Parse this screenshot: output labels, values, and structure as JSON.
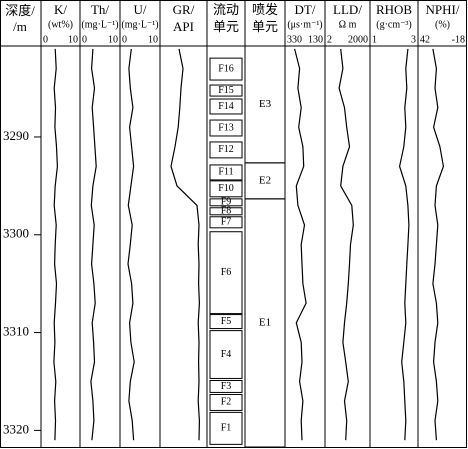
{
  "chart_data": {
    "type": "well-log",
    "depth_name": "深度/",
    "depth_unit": "/m",
    "ylim": [
      3280.7,
      3321.7
    ],
    "yticks": [
      3290,
      3300,
      3310,
      3320
    ],
    "depth": [
      3281,
      3283,
      3285,
      3287,
      3289,
      3291,
      3293,
      3295,
      3297,
      3299,
      3301,
      3303,
      3305,
      3307,
      3309,
      3311,
      3313,
      3315,
      3317,
      3319,
      3321
    ],
    "tracks": [
      {
        "type": "curve",
        "name": "K/",
        "unit": "(wt%)",
        "xlim": [
          0,
          10
        ],
        "xticks": [
          0,
          10
        ],
        "values": [
          3.5,
          3.8,
          3.2,
          3.6,
          3.4,
          3.9,
          4.2,
          3.5,
          3.2,
          3.8,
          3.5,
          3.3,
          3.9,
          3.6,
          3.2,
          3.4,
          3.1,
          3.7,
          3.3,
          3.6,
          3.4
        ]
      },
      {
        "type": "curve",
        "name": "Th/",
        "unit": "(mg·L⁻¹)",
        "xlim": [
          0,
          10
        ],
        "xticks": [
          0,
          10
        ],
        "values": [
          3.0,
          2.6,
          3.5,
          2.8,
          3.2,
          3.6,
          4.0,
          3.0,
          2.5,
          3.4,
          3.0,
          2.6,
          3.3,
          3.7,
          2.8,
          3.2,
          3.5,
          2.4,
          3.0,
          3.3,
          2.7
        ]
      },
      {
        "type": "curve",
        "name": "U/",
        "unit": "(mg·L⁻¹)",
        "xlim": [
          0,
          10
        ],
        "xticks": [
          0,
          10
        ],
        "values": [
          2.5,
          1.8,
          2.2,
          3.0,
          2.0,
          2.6,
          3.2,
          2.4,
          1.6,
          2.8,
          2.2,
          1.5,
          2.6,
          3.0,
          2.0,
          2.4,
          3.4,
          2.2,
          1.8,
          2.8,
          3.2
        ]
      },
      {
        "type": "curve",
        "name": "GR/",
        "unit": "API",
        "xlim": [
          0,
          100
        ],
        "values": [
          40,
          50,
          45,
          42,
          38,
          30,
          20,
          35,
          85,
          90,
          88,
          90,
          89,
          91,
          88,
          90,
          89,
          90,
          88,
          91,
          90
        ]
      },
      {
        "type": "zones",
        "name": "流动",
        "unit": "单元",
        "zones": [
          {
            "label": "F16",
            "top": 3281.94,
            "bottom": 3284.18
          },
          {
            "label": "F15",
            "top": 3284.69,
            "bottom": 3285.82
          },
          {
            "label": "F14",
            "top": 3286.12,
            "bottom": 3287.65
          },
          {
            "label": "F13",
            "top": 3288.27,
            "bottom": 3289.9
          },
          {
            "label": "F12",
            "top": 3290.51,
            "bottom": 3292.14
          },
          {
            "label": "F11",
            "top": 3292.86,
            "bottom": 3294.39
          },
          {
            "label": "F10",
            "top": 3294.49,
            "bottom": 3296.12
          },
          {
            "label": "F9",
            "top": 3296.33,
            "bottom": 3297.04
          },
          {
            "label": "F8",
            "top": 3297.24,
            "bottom": 3297.96
          },
          {
            "label": "F7",
            "top": 3298.16,
            "bottom": 3299.29
          },
          {
            "label": "F6",
            "top": 3299.69,
            "bottom": 3308.06
          },
          {
            "label": "F5",
            "top": 3308.16,
            "bottom": 3309.59
          },
          {
            "label": "F4",
            "top": 3309.8,
            "bottom": 3314.69
          },
          {
            "label": "F3",
            "top": 3314.9,
            "bottom": 3316.12
          },
          {
            "label": "F2",
            "top": 3316.33,
            "bottom": 3317.96
          },
          {
            "label": "F1",
            "top": 3318.16,
            "bottom": 3321.43
          }
        ]
      },
      {
        "type": "intervals",
        "name": "喷发",
        "unit": "单元",
        "zones": [
          {
            "label": "E3",
            "top": 3280.7,
            "bottom": 3292.65
          },
          {
            "label": "E2",
            "top": 3292.65,
            "bottom": 3296.33
          },
          {
            "label": "E1",
            "top": 3296.33,
            "bottom": 3321.7
          }
        ]
      },
      {
        "type": "curve",
        "name": "DT/",
        "unit": "(μs·m⁻¹)",
        "xlim": [
          330,
          130
        ],
        "xticks": [
          330,
          130
        ],
        "values": [
          290,
          260,
          270,
          250,
          265,
          240,
          235,
          280,
          270,
          230,
          250,
          245,
          240,
          220,
          280,
          250,
          245,
          260,
          240,
          250,
          245
        ]
      },
      {
        "type": "curve",
        "name": "LLD/",
        "unit": "Ω m",
        "log": true,
        "xlim": [
          2,
          2000
        ],
        "xticks": [
          2,
          2000
        ],
        "values": [
          20,
          30,
          15,
          40,
          60,
          100,
          30,
          20,
          150,
          200,
          120,
          100,
          80,
          60,
          40,
          30,
          50,
          80,
          40,
          60,
          50
        ]
      },
      {
        "type": "curve",
        "name": "RHOB",
        "unit": "(g·cm⁻³)",
        "xlim": [
          1,
          3
        ],
        "xticks": [
          1,
          3
        ],
        "values": [
          2.7,
          2.6,
          2.65,
          2.55,
          2.6,
          2.5,
          2.3,
          2.6,
          2.7,
          2.75,
          2.7,
          2.65,
          2.6,
          2.55,
          2.6,
          2.5,
          2.4,
          2.5,
          2.55,
          2.6,
          2.55
        ]
      },
      {
        "type": "curve",
        "name": "NPHI/",
        "unit": "(%)",
        "xlim": [
          42,
          -18
        ],
        "xticks": [
          42,
          -18
        ],
        "values": [
          25,
          20,
          22,
          18,
          24,
          15,
          10,
          20,
          22,
          18,
          20,
          22,
          25,
          20,
          18,
          22,
          24,
          20,
          18,
          22,
          20
        ]
      }
    ]
  }
}
